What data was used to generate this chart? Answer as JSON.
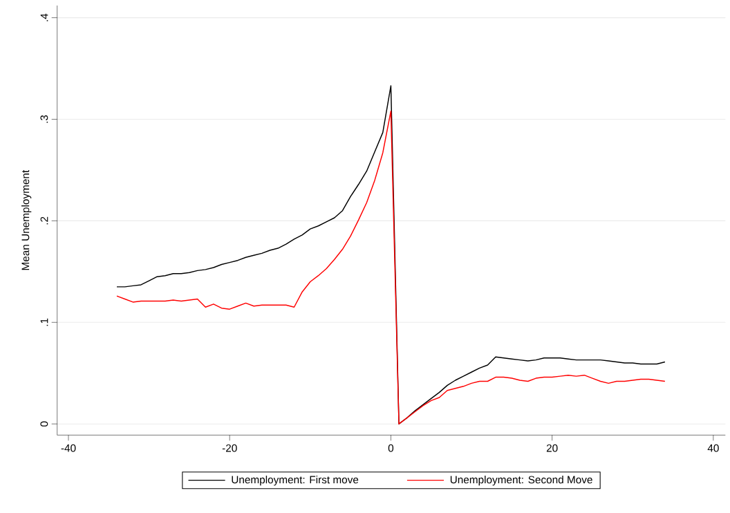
{
  "chart_data": {
    "type": "line",
    "ylabel": "Mean Unemployment",
    "x": [
      -34,
      -33,
      -32,
      -31,
      -30,
      -29,
      -28,
      -27,
      -26,
      -25,
      -24,
      -23,
      -22,
      -21,
      -20,
      -19,
      -18,
      -17,
      -16,
      -15,
      -14,
      -13,
      -12,
      -11,
      -10,
      -9,
      -8,
      -7,
      -6,
      -5,
      -4,
      -3,
      -2,
      -1,
      0,
      1,
      2,
      3,
      4,
      5,
      6,
      7,
      8,
      9,
      10,
      11,
      12,
      13,
      14,
      15,
      16,
      17,
      18,
      19,
      20,
      21,
      22,
      23,
      24,
      25,
      26,
      27,
      28,
      29,
      30,
      31,
      32,
      33,
      34
    ],
    "series": [
      {
        "name": "Unemployment: First move",
        "color": "#000000",
        "values": [
          0.135,
          0.135,
          0.136,
          0.137,
          0.141,
          0.145,
          0.146,
          0.148,
          0.148,
          0.149,
          0.151,
          0.152,
          0.154,
          0.157,
          0.159,
          0.161,
          0.164,
          0.166,
          0.168,
          0.171,
          0.173,
          0.177,
          0.182,
          0.186,
          0.192,
          0.195,
          0.199,
          0.203,
          0.21,
          0.224,
          0.236,
          0.249,
          0.268,
          0.287,
          0.333,
          0,
          0.006,
          0.013,
          0.019,
          0.025,
          0.031,
          0.038,
          0.043,
          0.047,
          0.051,
          0.055,
          0.058,
          0.066,
          0.065,
          0.064,
          0.063,
          0.062,
          0.063,
          0.065,
          0.065,
          0.065,
          0.064,
          0.063,
          0.063,
          0.063,
          0.063,
          0.062,
          0.061,
          0.06,
          0.06,
          0.059,
          0.059,
          0.059,
          0.061
        ]
      },
      {
        "name": "Unemployment: Second Move",
        "color": "#ff0000",
        "values": [
          0.126,
          0.123,
          0.12,
          0.121,
          0.121,
          0.121,
          0.121,
          0.122,
          0.121,
          0.122,
          0.123,
          0.115,
          0.118,
          0.114,
          0.113,
          0.116,
          0.119,
          0.116,
          0.117,
          0.117,
          0.117,
          0.117,
          0.115,
          0.13,
          0.14,
          0.146,
          0.153,
          0.162,
          0.172,
          0.185,
          0.201,
          0.218,
          0.24,
          0.267,
          0.308,
          0,
          0.006,
          0.012,
          0.018,
          0.023,
          0.026,
          0.033,
          0.035,
          0.037,
          0.04,
          0.042,
          0.042,
          0.046,
          0.046,
          0.045,
          0.043,
          0.042,
          0.045,
          0.046,
          0.046,
          0.047,
          0.048,
          0.047,
          0.048,
          0.045,
          0.042,
          0.04,
          0.042,
          0.042,
          0.043,
          0.044,
          0.044,
          0.043,
          0.042
        ]
      }
    ],
    "xlim": [
      -41.4,
      41.5
    ],
    "ylim": [
      -0.011,
      0.412
    ],
    "xticks": [
      -40,
      -20,
      0,
      20,
      40
    ],
    "yticks": [
      0,
      {
        "value": 0.1,
        "label": ".1"
      },
      {
        "value": 0.2,
        "label": ".2"
      },
      {
        "value": 0.3,
        "label": ".3"
      },
      {
        "value": 0.4,
        "label": ".4"
      }
    ],
    "grid": "y",
    "legend": "bottom",
    "marker": "none",
    "line_style": "solid"
  }
}
